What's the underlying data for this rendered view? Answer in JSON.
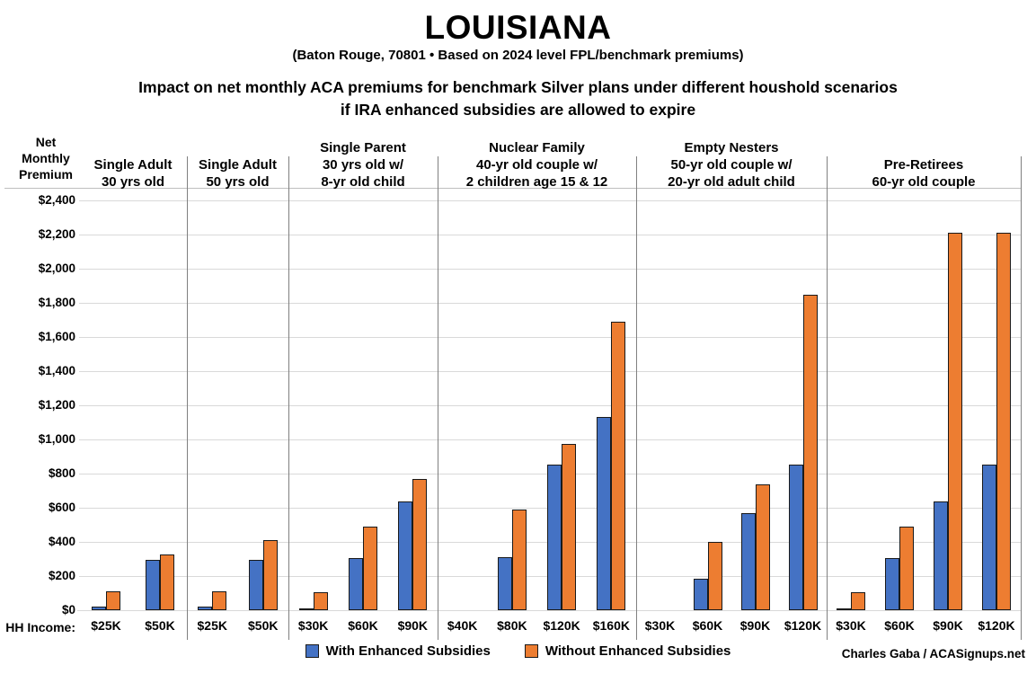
{
  "header": {
    "title": "LOUISIANA",
    "subtitle": "(Baton Rouge, 70801 • Based on 2024 level FPL/benchmark premiums)",
    "description_line1": "Impact on net monthly ACA premiums for benchmark Silver plans under different houshold scenarios",
    "description_line2": "if IRA enhanced subsidies are allowed to expire"
  },
  "y_axis_title_lines": [
    "Net",
    "Monthly",
    "Premium"
  ],
  "hh_income_label": "HH Income:",
  "legend": {
    "with_label": "With Enhanced Subsidies",
    "without_label": "Without Enhanced Subsidies"
  },
  "credit": "Charles Gaba / ACASignups.net",
  "colors": {
    "with_enhanced": "#4472C4",
    "without_enhanced": "#ED7D31",
    "bar_outline": "#1a1a1a",
    "gridline": "#d9d9d9",
    "divider": "#808080",
    "axis_line": "#bfbfbf",
    "text": "#000000"
  },
  "chart_data": {
    "type": "bar",
    "title": "LOUISIANA",
    "subtitle": "(Baton Rouge, 70801 • Based on 2024 level FPL/benchmark premiums)",
    "ylabel": "Net Monthly Premium",
    "xlabel": "HH Income",
    "ylim": [
      0,
      2400
    ],
    "ytick_step": 200,
    "grid": true,
    "legend_position": "bottom",
    "series_names": [
      "With Enhanced Subsidies",
      "Without Enhanced Subsidies"
    ],
    "groups": [
      {
        "label_lines": [
          "Single Adult",
          "30 yrs old"
        ],
        "categories": [
          "$25K",
          "$50K"
        ],
        "with_enhanced": [
          20,
          295
        ],
        "without_enhanced": [
          110,
          325
        ]
      },
      {
        "label_lines": [
          "Single Adult",
          "50 yrs old"
        ],
        "categories": [
          "$25K",
          "$50K"
        ],
        "with_enhanced": [
          20,
          295
        ],
        "without_enhanced": [
          110,
          410
        ]
      },
      {
        "label_lines": [
          "Single Parent",
          "30 yrs old w/",
          "8-yr old child"
        ],
        "categories": [
          "$30K",
          "$60K",
          "$90K"
        ],
        "with_enhanced": [
          10,
          305,
          635
        ],
        "without_enhanced": [
          105,
          490,
          770
        ]
      },
      {
        "label_lines": [
          "Nuclear Family",
          "40-yr old couple w/",
          "2 children age 15 & 12"
        ],
        "categories": [
          "$40K",
          "$80K",
          "$120K",
          "$160K"
        ],
        "with_enhanced": [
          0,
          310,
          850,
          1130
        ],
        "without_enhanced": [
          0,
          590,
          975,
          1690
        ]
      },
      {
        "label_lines": [
          "Empty Nesters",
          "50-yr old couple w/",
          "20-yr old adult child"
        ],
        "categories": [
          "$30K",
          "$60K",
          "$90K",
          "$120K"
        ],
        "with_enhanced": [
          0,
          185,
          570,
          850
        ],
        "without_enhanced": [
          0,
          400,
          735,
          1845
        ]
      },
      {
        "label_lines": [
          "Pre-Retirees",
          "60-yr old couple"
        ],
        "categories": [
          "$30K",
          "$60K",
          "$90K",
          "$120K"
        ],
        "with_enhanced": [
          10,
          305,
          635,
          850
        ],
        "without_enhanced": [
          105,
          490,
          2210,
          2210
        ]
      }
    ]
  }
}
